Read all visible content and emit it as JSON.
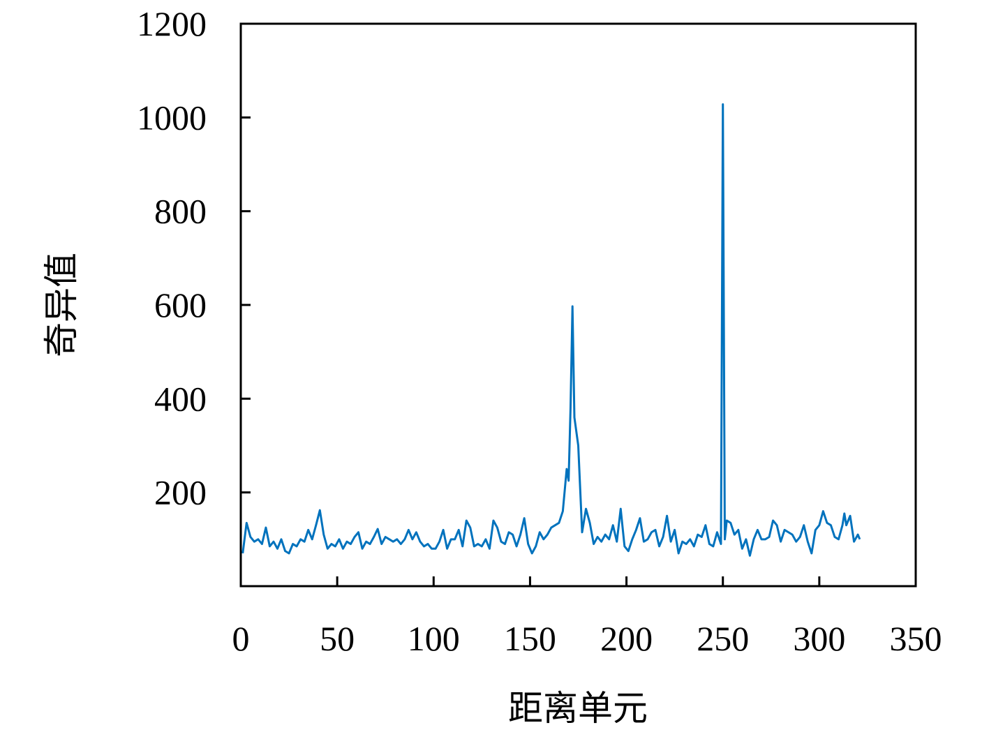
{
  "chart_data": {
    "type": "line",
    "xlabel": "距离单元",
    "ylabel": "奇异值",
    "xlim": [
      0,
      350
    ],
    "xticks": [
      0,
      50,
      100,
      150,
      200,
      250,
      300,
      350
    ],
    "ylim": [
      0,
      1200
    ],
    "yticks": [
      200,
      400,
      600,
      800,
      1000,
      1200
    ],
    "series": [
      {
        "color": "#0072bd",
        "x": [
          1,
          3,
          5,
          7,
          9,
          11,
          13,
          15,
          17,
          19,
          21,
          23,
          25,
          27,
          29,
          31,
          33,
          35,
          37,
          39,
          41,
          43,
          45,
          47,
          49,
          51,
          53,
          55,
          57,
          59,
          61,
          63,
          65,
          67,
          69,
          71,
          73,
          75,
          77,
          79,
          81,
          83,
          85,
          87,
          89,
          91,
          93,
          95,
          97,
          99,
          101,
          103,
          105,
          107,
          109,
          111,
          113,
          115,
          117,
          119,
          121,
          123,
          125,
          127,
          129,
          131,
          133,
          135,
          137,
          139,
          141,
          143,
          145,
          147,
          149,
          151,
          153,
          155,
          157,
          159,
          161,
          163,
          165,
          167,
          169,
          170,
          171,
          172,
          173,
          175,
          177,
          179,
          181,
          183,
          185,
          187,
          189,
          191,
          193,
          195,
          197,
          199,
          201,
          203,
          205,
          207,
          209,
          211,
          213,
          215,
          217,
          219,
          221,
          223,
          225,
          227,
          229,
          231,
          233,
          235,
          237,
          239,
          241,
          243,
          245,
          247,
          249,
          250,
          251,
          252,
          254,
          256,
          258,
          260,
          262,
          264,
          266,
          268,
          270,
          272,
          274,
          276,
          278,
          280,
          282,
          284,
          286,
          288,
          290,
          292,
          294,
          296,
          298,
          300,
          302,
          304,
          306,
          308,
          310,
          312,
          313,
          314,
          316,
          318,
          320,
          321
        ],
        "values": [
          70,
          135,
          105,
          95,
          100,
          90,
          125,
          85,
          95,
          80,
          100,
          75,
          70,
          90,
          85,
          100,
          95,
          120,
          100,
          130,
          162,
          110,
          80,
          90,
          85,
          100,
          80,
          95,
          90,
          105,
          115,
          80,
          95,
          90,
          105,
          122,
          90,
          105,
          100,
          95,
          100,
          90,
          100,
          120,
          100,
          115,
          95,
          85,
          90,
          80,
          80,
          95,
          120,
          80,
          100,
          100,
          120,
          85,
          140,
          125,
          85,
          90,
          85,
          100,
          80,
          140,
          125,
          95,
          90,
          115,
          110,
          85,
          110,
          145,
          90,
          70,
          85,
          115,
          100,
          110,
          125,
          130,
          135,
          160,
          250,
          225,
          380,
          597,
          360,
          300,
          115,
          165,
          135,
          90,
          105,
          95,
          110,
          100,
          130,
          95,
          165,
          85,
          75,
          100,
          120,
          145,
          95,
          100,
          115,
          120,
          85,
          105,
          150,
          95,
          120,
          70,
          95,
          90,
          100,
          85,
          110,
          105,
          130,
          90,
          85,
          115,
          90,
          1028,
          100,
          140,
          135,
          110,
          120,
          80,
          100,
          65,
          100,
          120,
          100,
          100,
          105,
          140,
          130,
          95,
          120,
          115,
          110,
          95,
          105,
          130,
          95,
          70,
          120,
          130,
          160,
          135,
          130,
          105,
          100,
          130,
          155,
          130,
          150,
          95,
          110,
          100
        ]
      }
    ]
  }
}
